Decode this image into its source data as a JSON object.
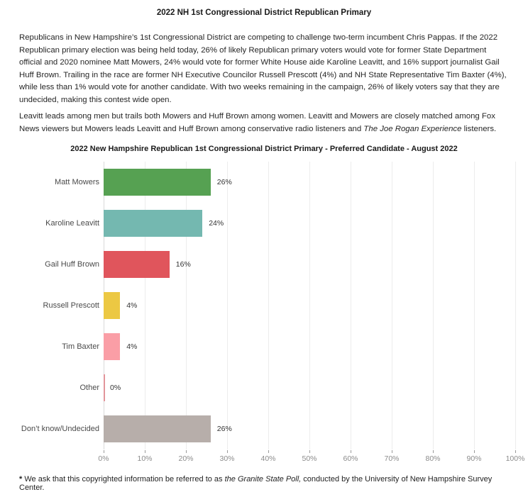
{
  "doc": {
    "title": "2022 NH 1st Congressional District Republican Primary",
    "paragraph1": "Republicans in New Hampshire’s 1st Congressional District are competing to challenge two-term incumbent Chris Pappas. If the 2022 Republican primary election was being held today, 26% of likely Republican primary voters would vote for former State Department official and 2020 nominee Matt Mowers, 24% would vote for former White House aide Karoline Leavitt, and 16% support journalist Gail Huff Brown. Trailing in the race are former NH Executive Councilor Russell Prescott (4%) and NH State Representative Tim Baxter (4%), while less than 1% would vote for another candidate. With two weeks remaining in the campaign, 26% of likely voters say that they are undecided, making this contest wide open.",
    "paragraph2": {
      "part1": "Leavitt leads among men but trails both Mowers and Huff Brown among women. Leavitt and Mowers are closely matched among Fox News viewers but Mowers leads Leavitt and Huff Brown among conservative radio listeners and ",
      "italic": "The Joe Rogan Experience",
      "part2": " listeners."
    },
    "footnote": {
      "star": "*",
      "part1": " We ask that this copyrighted information be referred to as ",
      "italic": "the Granite State Poll,",
      "part2": " conducted by the University of New Hampshire Survey Center."
    }
  },
  "chart_data": {
    "type": "bar",
    "orientation": "horizontal",
    "title": "2022 New Hampshire Republican 1st Congressional District Primary - Preferred Candidate - August 2022",
    "categories": [
      "Matt Mowers",
      "Karoline Leavitt",
      "Gail Huff Brown",
      "Russell Prescott",
      "Tim Baxter",
      "Other",
      "Don’t know/Undecided"
    ],
    "values": [
      26,
      24,
      16,
      4,
      4,
      0,
      26
    ],
    "value_labels": [
      "26%",
      "24%",
      "16%",
      "4%",
      "4%",
      "0%",
      "26%"
    ],
    "bar_colors": [
      "#56a152",
      "#74b8b0",
      "#e0555c",
      "#ecc843",
      "#fa9ea6",
      "#e2959b",
      "#b7aeaa"
    ],
    "x_ticks": [
      "0%",
      "10%",
      "20%",
      "30%",
      "40%",
      "50%",
      "60%",
      "70%",
      "80%",
      "90%",
      "100%"
    ],
    "xlim": [
      0,
      100
    ],
    "grid": true,
    "legend": "none",
    "xlabel": "",
    "ylabel": ""
  }
}
